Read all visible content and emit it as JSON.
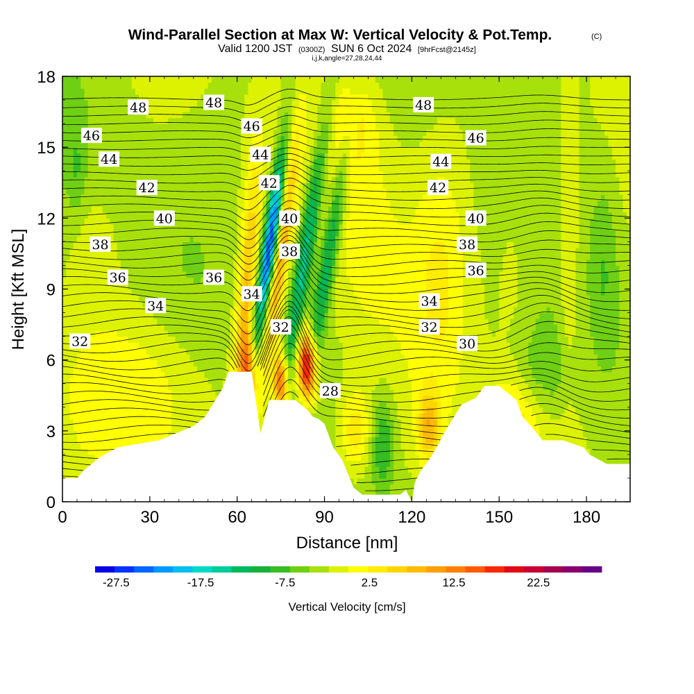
{
  "title": {
    "main": "Wind-Parallel Section at Max W: Vertical Velocity & Pot.Temp.",
    "copyright": "(C)",
    "valid_prefix": "Valid 1200 JST",
    "valid_utc": "(0300Z)",
    "valid_date": "SUN 6 Oct 2024",
    "forecast": "[9hrFcst@2145z]",
    "indices": "i,j,k,angle=27,28,24,44"
  },
  "chart_data": {
    "type": "heatmap",
    "xlabel": "Distance [nm]",
    "ylabel": "Height [Kft MSL]",
    "xlim": [
      0,
      195
    ],
    "ylim": [
      0,
      18
    ],
    "x_ticks": [
      "0",
      "30",
      "60",
      "90",
      "120",
      "150",
      "180"
    ],
    "x_tick_values": [
      0,
      30,
      60,
      90,
      120,
      150,
      180
    ],
    "y_ticks": [
      "0",
      "3",
      "6",
      "9",
      "12",
      "15",
      "18"
    ],
    "y_tick_values": [
      0,
      3,
      6,
      9,
      12,
      15,
      18
    ],
    "grid": false,
    "colorbar": {
      "label": "Vertical Velocity [cm/s]",
      "tick_labels": [
        "-27.5",
        "-17.5",
        "-7.5",
        "2.5",
        "12.5",
        "22.5"
      ],
      "tick_values": [
        -27.5,
        -17.5,
        -7.5,
        2.5,
        12.5,
        22.5
      ],
      "min": -30,
      "max": 30,
      "colors": [
        "#0a00e6",
        "#0033ff",
        "#0066ff",
        "#0099ff",
        "#00bfee",
        "#00d9c8",
        "#00cc99",
        "#00b85c",
        "#17b13a",
        "#35bd23",
        "#6fcf14",
        "#a8e00c",
        "#ddf200",
        "#ffff00",
        "#ffec00",
        "#ffd500",
        "#ffbb00",
        "#ff9f00",
        "#ff8000",
        "#ff5a00",
        "#f62a00",
        "#e00a14",
        "#c80032",
        "#a50050",
        "#880070",
        "#660088"
      ]
    },
    "terrain_profile": {
      "x": [
        0,
        5,
        7,
        10,
        13,
        19,
        33,
        39,
        45,
        49,
        51,
        53,
        55,
        57,
        60,
        65,
        68,
        71,
        74,
        76,
        80,
        84,
        86,
        88,
        90,
        93,
        96,
        98,
        100,
        103,
        107,
        111,
        116,
        118,
        120,
        121,
        123,
        126,
        129,
        131,
        134,
        137,
        142,
        145,
        150,
        156,
        158,
        161,
        163,
        165,
        172,
        179,
        181,
        184,
        187,
        190,
        195
      ],
      "y": [
        1.0,
        1.0,
        1.3,
        1.6,
        1.9,
        2.3,
        2.6,
        2.9,
        3.2,
        3.6,
        4.0,
        4.4,
        4.8,
        5.5,
        5.5,
        5.5,
        2.9,
        4.3,
        4.3,
        4.3,
        4.3,
        3.9,
        3.6,
        3.5,
        3.3,
        2.3,
        1.8,
        1.2,
        0.6,
        0.3,
        0.3,
        0.3,
        0.3,
        0.5,
        0.0,
        0.8,
        1.3,
        1.8,
        2.4,
        2.9,
        3.5,
        4.1,
        4.4,
        4.9,
        4.9,
        4.3,
        3.6,
        3.2,
        2.9,
        2.6,
        2.6,
        2.3,
        2.0,
        1.8,
        1.6,
        1.6,
        1.6
      ]
    },
    "theta_contours": [
      {
        "label": "28",
        "x": 92,
        "y": 4.7
      },
      {
        "label": "30",
        "x": 139,
        "y": 6.7
      },
      {
        "label": "32",
        "x": 6,
        "y": 6.8
      },
      {
        "label": "32",
        "x": 75,
        "y": 7.4
      },
      {
        "label": "32",
        "x": 126,
        "y": 7.4
      },
      {
        "label": "34",
        "x": 32,
        "y": 8.3
      },
      {
        "label": "34",
        "x": 65,
        "y": 8.8
      },
      {
        "label": "34",
        "x": 126,
        "y": 8.5
      },
      {
        "label": "36",
        "x": 19,
        "y": 9.5
      },
      {
        "label": "36",
        "x": 52,
        "y": 9.5
      },
      {
        "label": "36",
        "x": 142,
        "y": 9.8
      },
      {
        "label": "38",
        "x": 13,
        "y": 10.9
      },
      {
        "label": "38",
        "x": 78,
        "y": 10.6
      },
      {
        "label": "38",
        "x": 139,
        "y": 10.9
      },
      {
        "label": "40",
        "x": 35,
        "y": 12.0
      },
      {
        "label": "40",
        "x": 78,
        "y": 12.0
      },
      {
        "label": "40",
        "x": 142,
        "y": 12.0
      },
      {
        "label": "42",
        "x": 29,
        "y": 13.3
      },
      {
        "label": "42",
        "x": 71,
        "y": 13.5
      },
      {
        "label": "42",
        "x": 129,
        "y": 13.3
      },
      {
        "label": "44",
        "x": 16,
        "y": 14.5
      },
      {
        "label": "44",
        "x": 68,
        "y": 14.7
      },
      {
        "label": "44",
        "x": 130,
        "y": 14.4
      },
      {
        "label": "46",
        "x": 10,
        "y": 15.5
      },
      {
        "label": "46",
        "x": 65,
        "y": 15.9
      },
      {
        "label": "46",
        "x": 142,
        "y": 15.4
      },
      {
        "label": "48",
        "x": 26,
        "y": 16.7
      },
      {
        "label": "48",
        "x": 52,
        "y": 16.9
      },
      {
        "label": "48",
        "x": 124,
        "y": 16.8
      }
    ]
  }
}
